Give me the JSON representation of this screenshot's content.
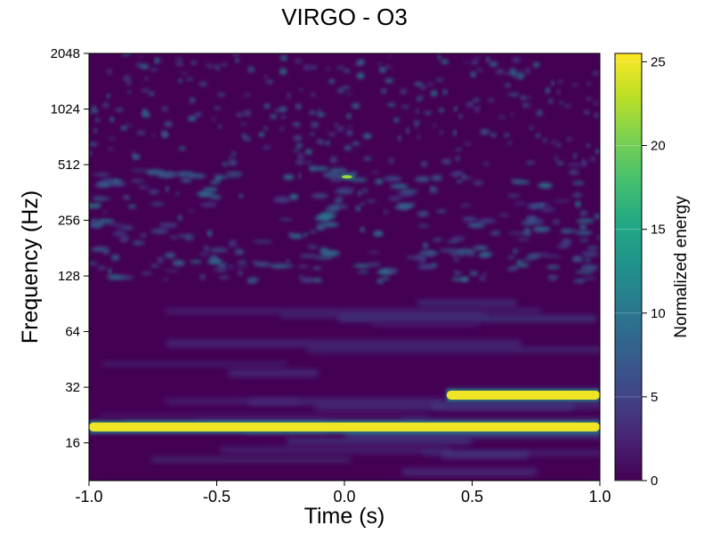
{
  "chart_data": {
    "type": "heatmap",
    "title": "VIRGO - O3",
    "xlabel": "Time (s)",
    "ylabel": "Frequency (Hz)",
    "xlim": [
      -1.0,
      1.0
    ],
    "ylim": [
      10,
      2048
    ],
    "yscale": "log2",
    "xticks": [
      -1.0,
      -0.5,
      0.0,
      0.5,
      1.0
    ],
    "xtick_labels": [
      "-1.0",
      "-0.5",
      "0.0",
      "0.5",
      "1.0"
    ],
    "yticks": [
      16,
      32,
      64,
      128,
      256,
      512,
      1024,
      2048
    ],
    "ytick_labels": [
      "16",
      "32",
      "64",
      "128",
      "256",
      "512",
      "1024",
      "2048"
    ],
    "colorbar": {
      "label": "Normalized energy",
      "min": 0,
      "max": 25.5,
      "ticks": [
        0,
        5,
        10,
        15,
        20,
        25
      ],
      "tick_labels": [
        "0",
        "5",
        "10",
        "15",
        "20",
        "25"
      ],
      "colormap": "viridis"
    },
    "features": [
      {
        "t_start": -1.0,
        "t_end": 1.0,
        "freq_hz": 19.5,
        "energy": 25
      },
      {
        "t_start": 0.4,
        "t_end": 1.0,
        "freq_hz": 29,
        "energy": 25
      },
      {
        "t_start": -0.02,
        "t_end": 0.04,
        "freq_hz": 440,
        "energy": 22
      }
    ]
  }
}
